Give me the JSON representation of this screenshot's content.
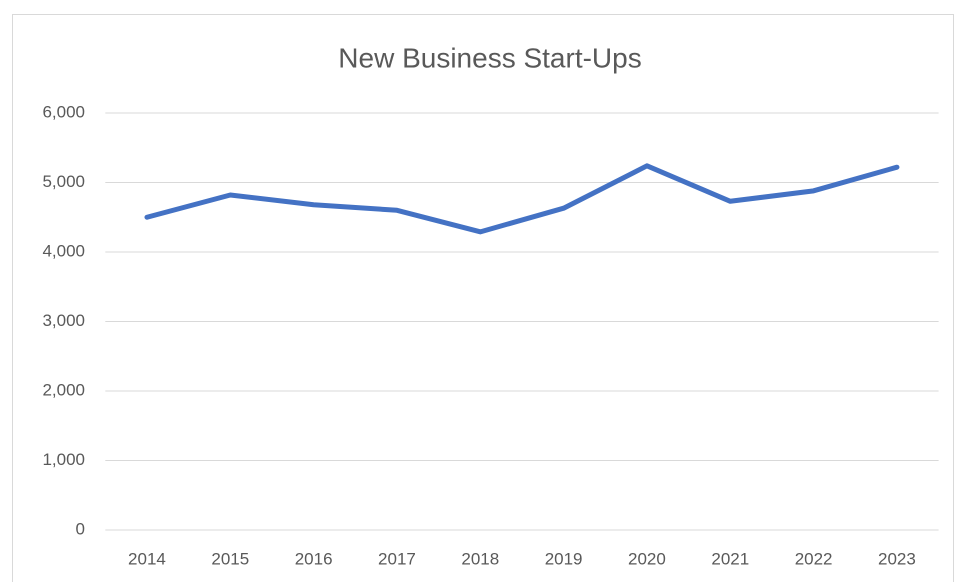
{
  "chart_data": {
    "type": "line",
    "title": "New Business Start-Ups",
    "categories": [
      "2014",
      "2015",
      "2016",
      "2017",
      "2018",
      "2019",
      "2020",
      "2021",
      "2022",
      "2023"
    ],
    "values": [
      4500,
      4820,
      4680,
      4600,
      4290,
      4630,
      5240,
      4730,
      4880,
      5220
    ],
    "color": "#4472c4",
    "ylim": [
      0,
      6000
    ],
    "yticks": [
      0,
      {
        "value": 1000,
        "label": "1,000"
      },
      {
        "value": 2000,
        "label": "2,000"
      },
      {
        "value": 3000,
        "label": "3,000"
      },
      {
        "value": 4000,
        "label": "4,000"
      },
      {
        "value": 5000,
        "label": "5,000"
      },
      {
        "value": 6000,
        "label": "6,000"
      }
    ],
    "grid": true
  }
}
